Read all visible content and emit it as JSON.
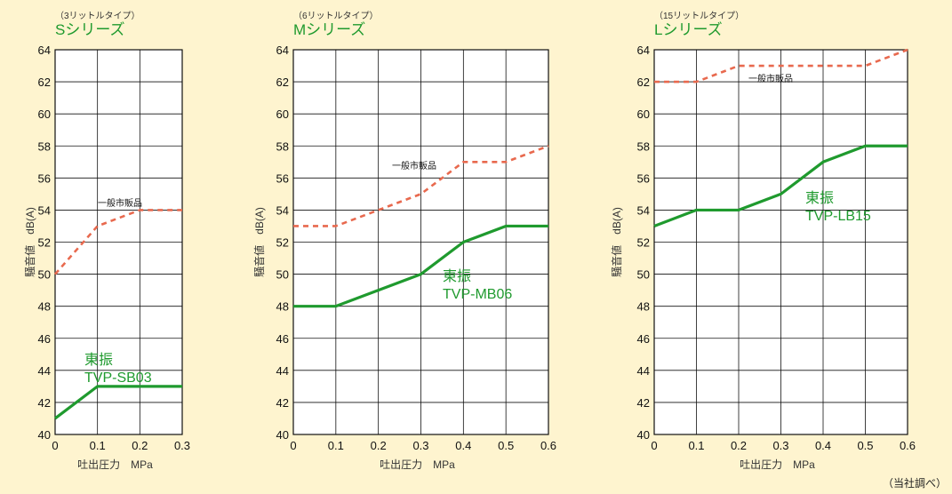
{
  "footnote": "（当社調べ）",
  "chart_data": [
    {
      "type": "line",
      "size_label": "（3リットルタイプ）",
      "series_title": "Sシリーズ",
      "xlabel": "吐出圧力　MPa",
      "ylabel": "騒音値　dB(A)",
      "xlim": [
        0,
        0.3
      ],
      "ylim": [
        40,
        64
      ],
      "x_ticks": [
        "0",
        "0.1",
        "0.2",
        "0.3"
      ],
      "y_ticks": [
        "40",
        "42",
        "44",
        "46",
        "48",
        "50",
        "52",
        "54",
        "56",
        "58",
        "60",
        "62",
        "64"
      ],
      "grid": true,
      "series": [
        {
          "name": "一般市販品",
          "color": "#e8694e",
          "style": "dashed",
          "x": [
            0,
            0.1,
            0.2,
            0.3
          ],
          "y": [
            50,
            53,
            54,
            54
          ]
        },
        {
          "name": "東振\nTVP-SB03",
          "color": "#1f9a2e",
          "style": "solid",
          "x": [
            0,
            0.1,
            0.2,
            0.3
          ],
          "y": [
            41,
            43,
            43,
            43
          ]
        }
      ]
    },
    {
      "type": "line",
      "size_label": "（6リットルタイプ）",
      "series_title": "Mシリーズ",
      "xlabel": "吐出圧力　MPa",
      "ylabel": "騒音値　dB(A)",
      "xlim": [
        0,
        0.6
      ],
      "ylim": [
        40,
        64
      ],
      "x_ticks": [
        "0",
        "0.1",
        "0.2",
        "0.3",
        "0.4",
        "0.5",
        "0.6"
      ],
      "y_ticks": [
        "40",
        "42",
        "44",
        "46",
        "48",
        "50",
        "52",
        "54",
        "56",
        "58",
        "60",
        "62",
        "64"
      ],
      "grid": true,
      "series": [
        {
          "name": "一般市販品",
          "color": "#e8694e",
          "style": "dashed",
          "x": [
            0,
            0.1,
            0.2,
            0.3,
            0.4,
            0.5,
            0.6
          ],
          "y": [
            53,
            53,
            54,
            55,
            57,
            57,
            58
          ]
        },
        {
          "name": "東振\nTVP-MB06",
          "color": "#1f9a2e",
          "style": "solid",
          "x": [
            0,
            0.1,
            0.2,
            0.3,
            0.4,
            0.5,
            0.6
          ],
          "y": [
            48,
            48,
            49,
            50,
            52,
            53,
            53
          ]
        }
      ]
    },
    {
      "type": "line",
      "size_label": "（15リットルタイプ）",
      "series_title": "Lシリーズ",
      "xlabel": "吐出圧力　MPa",
      "ylabel": "騒音値　dB(A)",
      "xlim": [
        0,
        0.6
      ],
      "ylim": [
        40,
        64
      ],
      "x_ticks": [
        "0",
        "0.1",
        "0.2",
        "0.3",
        "0.4",
        "0.5",
        "0.6"
      ],
      "y_ticks": [
        "40",
        "42",
        "44",
        "46",
        "48",
        "50",
        "52",
        "54",
        "56",
        "58",
        "60",
        "62",
        "64"
      ],
      "grid": true,
      "series": [
        {
          "name": "一般市販品",
          "color": "#e8694e",
          "style": "dashed",
          "x": [
            0,
            0.1,
            0.2,
            0.3,
            0.4,
            0.5,
            0.6
          ],
          "y": [
            62,
            62,
            63,
            63,
            63,
            63,
            64
          ]
        },
        {
          "name": "東振\nTVP-LB15",
          "color": "#1f9a2e",
          "style": "solid",
          "x": [
            0,
            0.1,
            0.2,
            0.3,
            0.4,
            0.5,
            0.6
          ],
          "y": [
            53,
            54,
            54,
            55,
            57,
            58,
            58
          ]
        }
      ]
    }
  ]
}
